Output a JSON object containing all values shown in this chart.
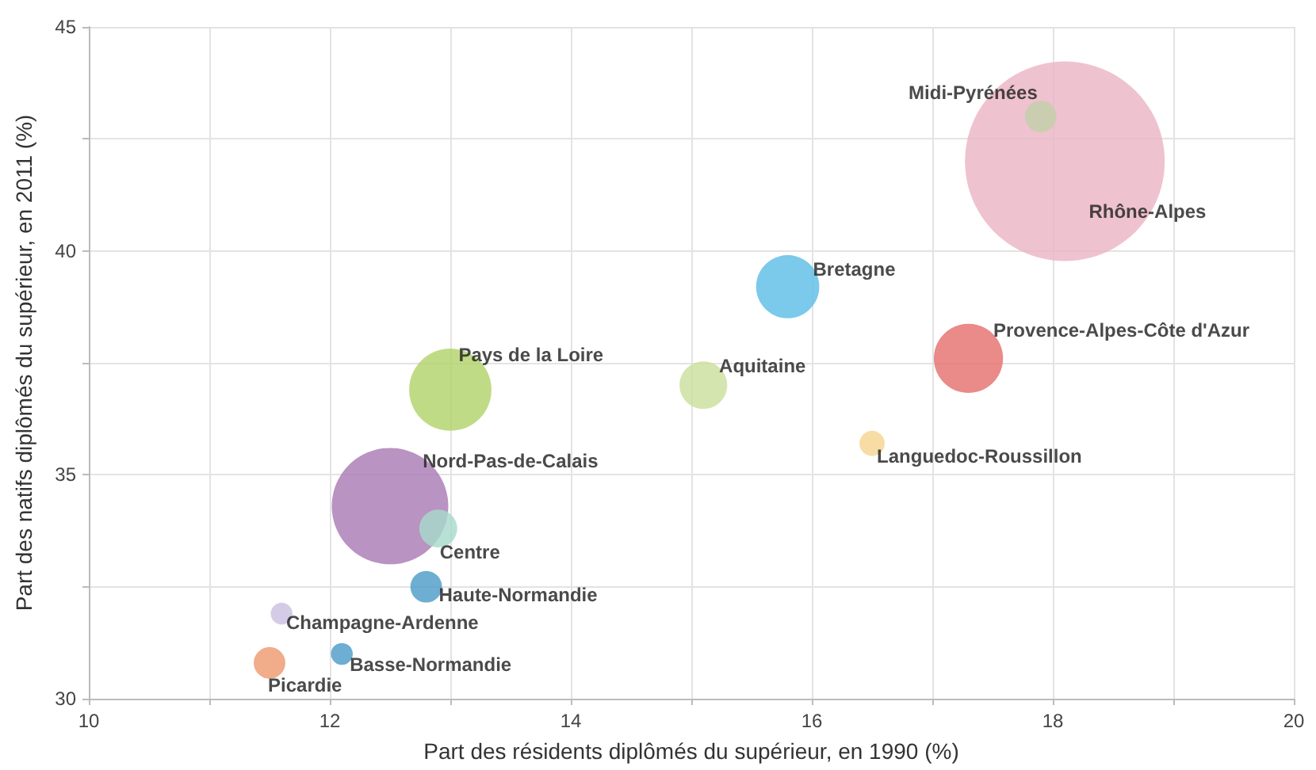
{
  "chart_data": {
    "type": "bubble",
    "xlabel": "Part des résidents diplômés du supérieur, en 1990 (%)",
    "ylabel": "Part des natifs diplômés du supérieur, en 2011 (%)",
    "xlim": [
      10,
      20
    ],
    "ylim": [
      30,
      45
    ],
    "xticks": [
      10,
      {
        "value": 11,
        "label": null
      },
      12,
      {
        "value": 13,
        "label": null
      },
      14,
      {
        "value": 15,
        "label": null
      },
      16,
      {
        "value": 17,
        "label": null
      },
      18,
      {
        "value": 19,
        "label": null
      },
      20
    ],
    "yticks": [
      30,
      {
        "value": 32.5,
        "label": null
      },
      35,
      {
        "value": 37.5,
        "label": null
      },
      40,
      {
        "value": 42.5,
        "label": null
      },
      45
    ],
    "grid": true,
    "legend": false,
    "series": [
      {
        "name": "Rhône-Alpes",
        "color": "#ecb4c4",
        "x": [
          18.1
        ],
        "values": [
          42.0
        ],
        "sizes": [
          1
        ]
      },
      {
        "name": "Midi-Pyrénées",
        "color": "#c3cfa9",
        "x": [
          17.9
        ],
        "values": [
          43.0
        ],
        "sizes": [
          0.025
        ]
      },
      {
        "name": "Bretagne",
        "color": "#5ebde6",
        "x": [
          15.8
        ],
        "values": [
          39.2
        ],
        "sizes": [
          0.1
        ]
      },
      {
        "name": "Provence-Alpes-Côte d'Azur",
        "color": "#e5706f",
        "x": [
          17.3
        ],
        "values": [
          37.6
        ],
        "sizes": [
          0.12
        ]
      },
      {
        "name": "Aquitaine",
        "color": "#cadf9e",
        "x": [
          15.1
        ],
        "values": [
          37.0
        ],
        "sizes": [
          0.057
        ]
      },
      {
        "name": "Languedoc-Roussillon",
        "color": "#f5d58f",
        "x": [
          16.5
        ],
        "values": [
          35.7
        ],
        "sizes": [
          0.016
        ]
      },
      {
        "name": "Pays de la Loire",
        "color": "#b2d36b",
        "x": [
          13.0
        ],
        "values": [
          36.9
        ],
        "sizes": [
          0.17
        ]
      },
      {
        "name": "Nord-Pas-de-Calais",
        "color": "#a97bb3",
        "x": [
          12.5
        ],
        "values": [
          34.3
        ],
        "sizes": [
          0.34
        ]
      },
      {
        "name": "Centre",
        "color": "#a7dbcc",
        "x": [
          12.9
        ],
        "values": [
          33.8
        ],
        "sizes": [
          0.036
        ]
      },
      {
        "name": "Haute-Normandie",
        "color": "#4d9cc8",
        "x": [
          12.8
        ],
        "values": [
          32.5
        ],
        "sizes": [
          0.025
        ]
      },
      {
        "name": "Champagne-Ardenne",
        "color": "#cbc1e0",
        "x": [
          11.6
        ],
        "values": [
          31.9
        ],
        "sizes": [
          0.012
        ]
      },
      {
        "name": "Basse-Normandie",
        "color": "#4d9cc8",
        "x": [
          12.1
        ],
        "values": [
          31.0
        ],
        "sizes": [
          0.012
        ]
      },
      {
        "name": "Picardie",
        "color": "#ee9a6f",
        "x": [
          11.5
        ],
        "values": [
          30.8
        ],
        "sizes": [
          0.025
        ]
      }
    ]
  }
}
